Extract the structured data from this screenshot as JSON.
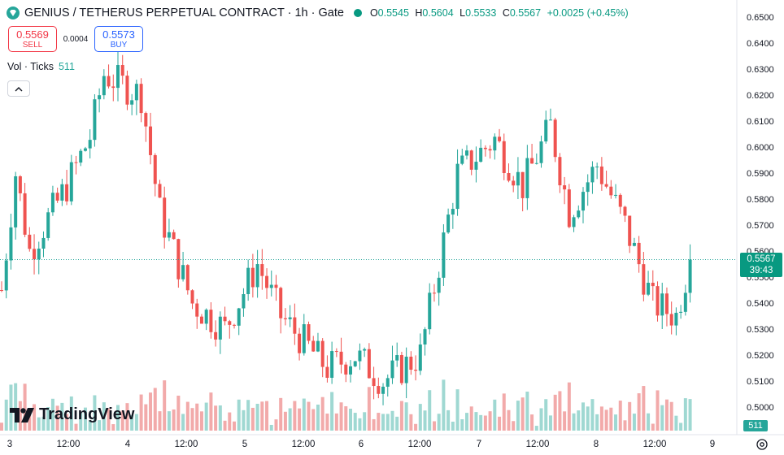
{
  "header": {
    "title": "GENIUS / TETHERUS PERPETUAL CONTRACT · 1h · Gate",
    "icon": "diamond-icon",
    "ohlc": {
      "open_label": "O",
      "open": "0.5545",
      "high_label": "H",
      "high": "0.5604",
      "low_label": "L",
      "low": "0.5533",
      "close_label": "C",
      "close": "0.5567",
      "change": "+0.0025 (+0.45%)"
    }
  },
  "trade": {
    "sell_price": "0.5569",
    "sell_label": "SELL",
    "spread": "0.0004",
    "buy_price": "0.5573",
    "buy_label": "BUY"
  },
  "volume": {
    "label": "Vol · Ticks",
    "value": "511"
  },
  "price_badge": {
    "price": "0.5567",
    "countdown": "39:43"
  },
  "branding": "TradingView",
  "colors": {
    "up": "#26a69a",
    "down": "#ef5350",
    "up_vol": "#9fd8d2",
    "down_vol": "#f2aaaa"
  },
  "chart_data": {
    "type": "candlestick",
    "timeframe": "1h",
    "y_axis": {
      "ticks": [
        "0.6500",
        "0.6400",
        "0.6300",
        "0.6200",
        "0.6100",
        "0.6000",
        "0.5900",
        "0.5800",
        "0.5700",
        "0.5600",
        "0.5500",
        "0.5400",
        "0.5300",
        "0.5200",
        "0.5100",
        "0.5000"
      ],
      "range": [
        0.4955,
        0.6545
      ]
    },
    "x_axis": {
      "ticks": [
        "3",
        "12:00",
        "4",
        "12:00",
        "5",
        "12:00",
        "6",
        "12:00",
        "7",
        "12:00",
        "8",
        "12:00",
        "9"
      ]
    },
    "last_price": 0.5567,
    "waypoints": [
      [
        0,
        0.545
      ],
      [
        3,
        0.59
      ],
      [
        6,
        0.56
      ],
      [
        14,
        0.585
      ],
      [
        19,
        0.604
      ],
      [
        22,
        0.628
      ],
      [
        30,
        0.62
      ],
      [
        34,
        0.575
      ],
      [
        41,
        0.54
      ],
      [
        48,
        0.53
      ],
      [
        55,
        0.555
      ],
      [
        60,
        0.535
      ],
      [
        65,
        0.525
      ],
      [
        70,
        0.515
      ],
      [
        76,
        0.52
      ],
      [
        82,
        0.51
      ],
      [
        90,
        0.52
      ],
      [
        98,
        0.59
      ],
      [
        106,
        0.603
      ],
      [
        112,
        0.585
      ],
      [
        118,
        0.608
      ],
      [
        122,
        0.575
      ],
      [
        128,
        0.593
      ],
      [
        134,
        0.57
      ],
      [
        140,
        0.54
      ],
      [
        145,
        0.535
      ],
      [
        148,
        0.557
      ]
    ],
    "volume_series": {
      "name": "Vol · Ticks",
      "last": 511
    }
  }
}
